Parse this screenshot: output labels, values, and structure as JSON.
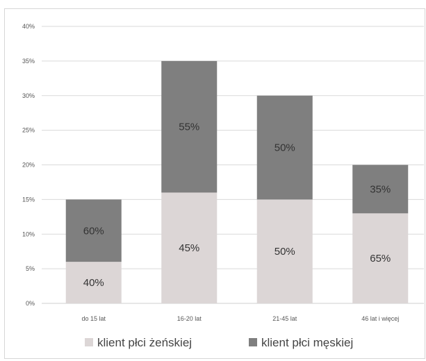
{
  "chart_data": {
    "type": "bar",
    "stacked": true,
    "categories": [
      "do 15 lat",
      "16-20 lat",
      "21-45 lat",
      "46 lat i więcej"
    ],
    "series": [
      {
        "name": "klient płci żeńskiej",
        "color": "#dcd6d6",
        "values": [
          6,
          16,
          15,
          13
        ],
        "labels": [
          "40%",
          "45%",
          "50%",
          "65%"
        ]
      },
      {
        "name": "klient płci męskiej",
        "color": "#7f7f7f",
        "values": [
          9,
          19,
          15,
          7
        ],
        "labels": [
          "60%",
          "55%",
          "50%",
          "35%"
        ]
      }
    ],
    "y_ticks": [
      "0%",
      "5%",
      "10%",
      "15%",
      "20%",
      "25%",
      "30%",
      "35%",
      "40%"
    ],
    "ylim": [
      0,
      40
    ],
    "grid": true,
    "legend_position": "bottom",
    "title": "",
    "xlabel": "",
    "ylabel": ""
  }
}
